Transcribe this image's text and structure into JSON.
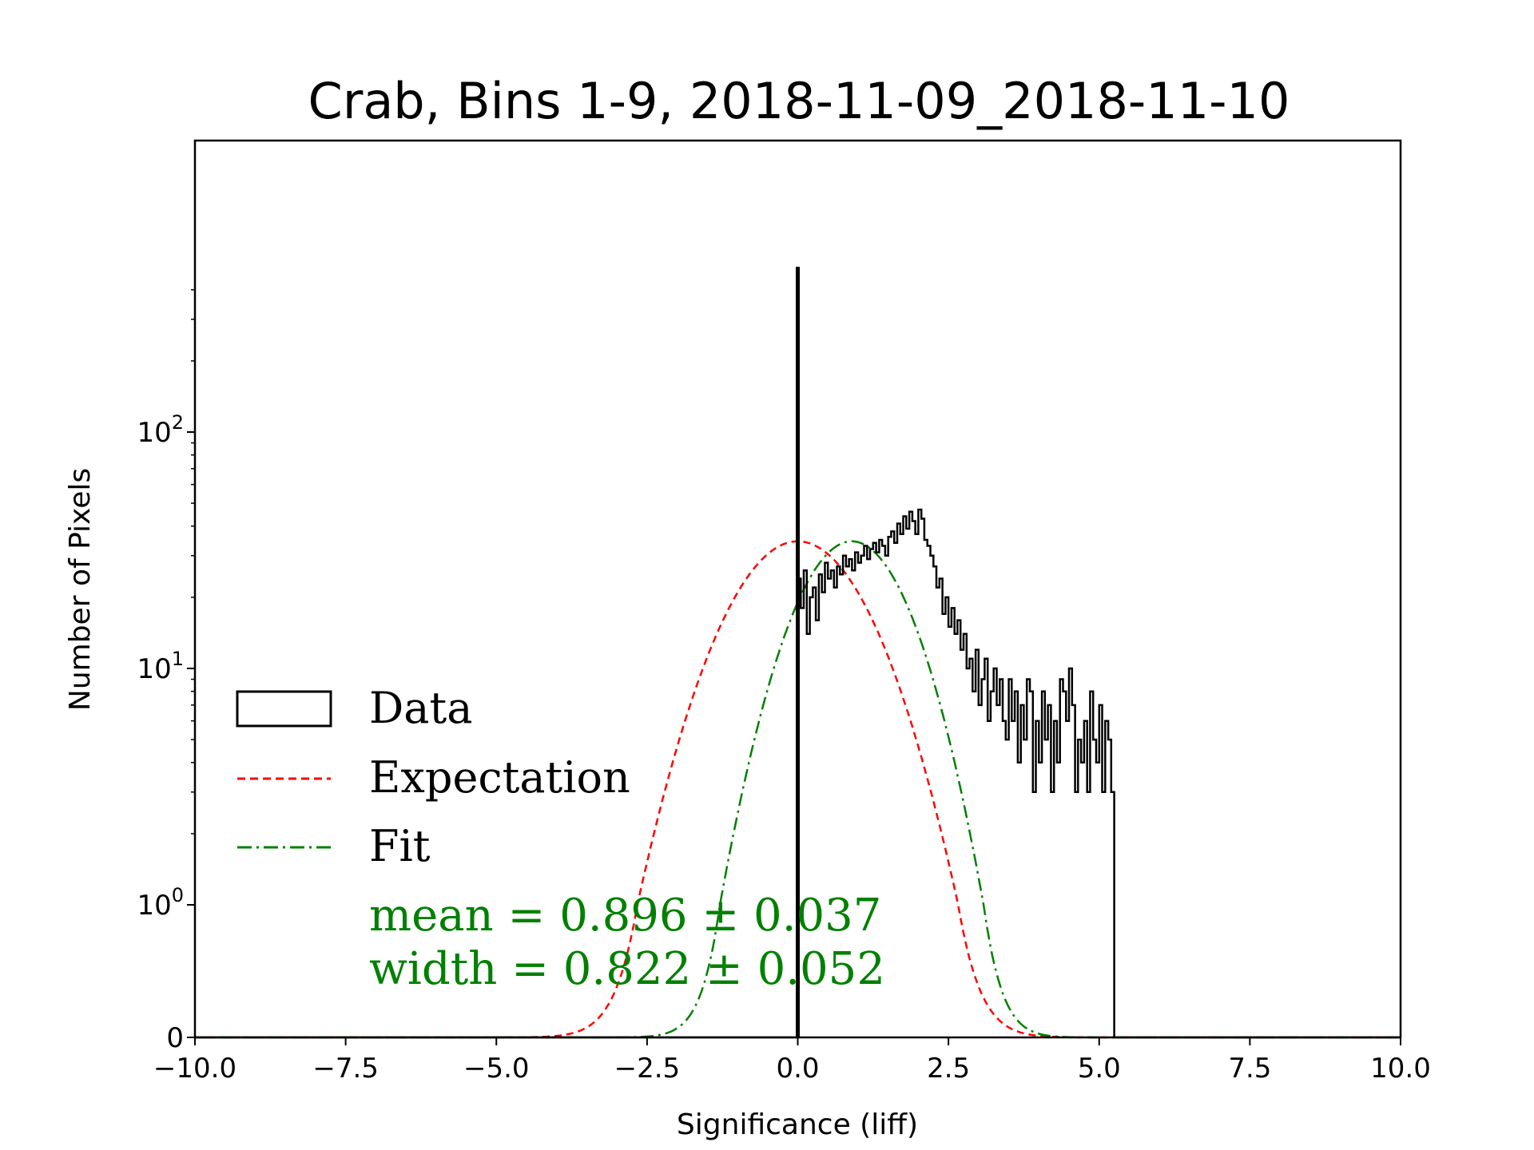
{
  "chart_data": {
    "type": "histogram",
    "title": "Crab, Bins 1-9, 2018-11-09_2018-11-10",
    "xlabel": "Significance (liff)",
    "ylabel": "Number of Pixels",
    "xlim": [
      -10.0,
      10.0
    ],
    "yscale": "symlog",
    "x_ticks": [
      -10.0,
      -7.5,
      -5.0,
      -2.5,
      0.0,
      2.5,
      5.0,
      7.5,
      10.0
    ],
    "x_tick_labels": [
      "−10.0",
      "−7.5",
      "−5.0",
      "−2.5",
      "0.0",
      "2.5",
      "5.0",
      "7.5",
      "10.0"
    ],
    "y_ticks": [
      {
        "value": 0,
        "base": "0",
        "exp": ""
      },
      {
        "value": 1,
        "base": "10",
        "exp": "0"
      },
      {
        "value": 10,
        "base": "10",
        "exp": "1"
      },
      {
        "value": 100,
        "base": "10",
        "exp": "2"
      }
    ],
    "legend": {
      "placement": "center-left",
      "items": [
        {
          "label": "Data",
          "style": "box",
          "color": "#000000"
        },
        {
          "label": "Expectation",
          "style": "dashed",
          "color": "#ff0000"
        },
        {
          "label": "Fit",
          "style": "dashdot",
          "color": "#008000"
        }
      ]
    },
    "annotations": {
      "mean": "mean = 0.896 ± 0.037",
      "width": "width = 0.822 ± 0.052"
    },
    "expectation": {
      "mean": 0.0,
      "sigma": 1.0,
      "amplitude": 34.5,
      "color": "#ff0000"
    },
    "fit": {
      "mean": 0.896,
      "sigma": 0.822,
      "amplitude": 34.5,
      "color": "#008000"
    },
    "series": [
      {
        "name": "Data",
        "color": "#000000",
        "bin_edges_start": 0.0,
        "bin_width": 0.05,
        "spike": {
          "x": 0.0,
          "value": 500
        },
        "counts": [
          24,
          18,
          26,
          14,
          20,
          22,
          16,
          25,
          21,
          28,
          24,
          26,
          22,
          27,
          25,
          30,
          27,
          29,
          26,
          31,
          28,
          30,
          33,
          29,
          32,
          34,
          31,
          35,
          33,
          30,
          36,
          38,
          34,
          41,
          37,
          44,
          39,
          46,
          42,
          37,
          47,
          43,
          35,
          33,
          30,
          27,
          22,
          24,
          17,
          20,
          15,
          18,
          14,
          16,
          12,
          14,
          10,
          11,
          8,
          12,
          7,
          9,
          11,
          6,
          8,
          10,
          7,
          9,
          6,
          5,
          9,
          6,
          8,
          4,
          7,
          5,
          9,
          8,
          3,
          6,
          4,
          8,
          5,
          7,
          3,
          6,
          4,
          9,
          8,
          6,
          10,
          7,
          3,
          5,
          4,
          6,
          3,
          8,
          5,
          4,
          7,
          3,
          6,
          5,
          3
        ]
      }
    ]
  }
}
